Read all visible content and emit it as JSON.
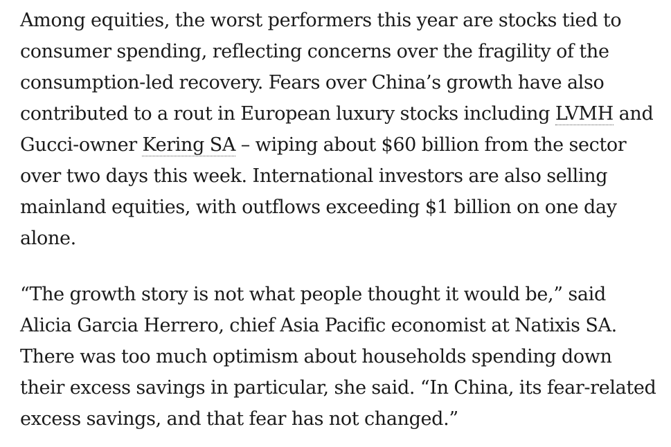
{
  "article": {
    "p1": {
      "l1": "Among equities, the worst performers this year are stocks tied to",
      "l2": "consumer spending, reflecting concerns over the fragility of the",
      "l3": "consumption-led recovery. Fears over China’s growth have also",
      "l4_pre": "contributed to a rout in European luxury stocks including ",
      "l4_link": "LVMH",
      "l4_post": " and",
      "l5_pre": "Gucci-owner ",
      "l5_link": "Kering SA",
      "l5_post": " – wiping about $60 billion from the sector",
      "l6": "over two days this week. International investors are also selling",
      "l7": "mainland equities, with outflows exceeding $1 billion on one day",
      "l8": "alone."
    },
    "p2": {
      "l1": "“The growth story is not what people thought it would be,” said",
      "l2": "Alicia Garcia Herrero, chief Asia Pacific economist at Natixis SA.",
      "l3": "There was too much optimism about households spending down",
      "l4": "their excess savings in particular, she said. “In China, its fear-related",
      "l5": "excess savings, and that fear has not changed.”"
    }
  }
}
